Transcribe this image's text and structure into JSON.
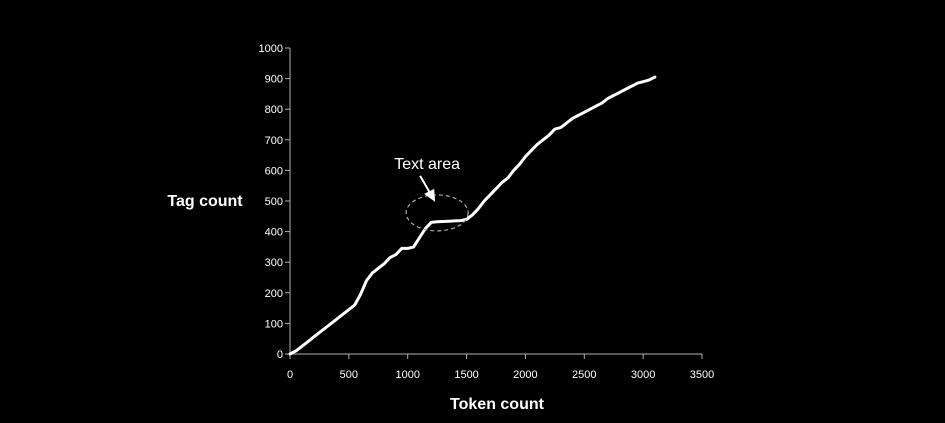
{
  "chart_data": {
    "type": "line",
    "title": "",
    "xlabel": "Token count",
    "ylabel": "Tag count",
    "xlim": [
      0,
      3500
    ],
    "ylim": [
      0,
      1000
    ],
    "x_ticks": [
      "0",
      "500",
      "1000",
      "1500",
      "2000",
      "2500",
      "3000",
      "3500"
    ],
    "y_ticks": [
      "0",
      "100",
      "200",
      "300",
      "400",
      "500",
      "600",
      "700",
      "800",
      "900",
      "1000"
    ],
    "grid": false,
    "legend": "none",
    "line_color": "#ffffff",
    "background_color": "#000000",
    "series": [
      {
        "x": [
          0,
          50,
          100,
          150,
          200,
          250,
          300,
          350,
          400,
          450,
          500,
          550,
          600,
          650,
          700,
          750,
          800,
          850,
          900,
          950,
          1000,
          1050,
          1100,
          1150,
          1200,
          1250,
          1300,
          1350,
          1400,
          1450,
          1500,
          1550,
          1600,
          1650,
          1700,
          1750,
          1800,
          1850,
          1900,
          1950,
          2000,
          2050,
          2100,
          2150,
          2200,
          2250,
          2300,
          2350,
          2400,
          2450,
          2500,
          2550,
          2600,
          2650,
          2700,
          2750,
          2800,
          2850,
          2900,
          2950,
          3000,
          3050,
          3100
        ],
        "y": [
          0,
          10,
          25,
          40,
          55,
          70,
          85,
          100,
          115,
          130,
          145,
          160,
          195,
          240,
          265,
          280,
          295,
          315,
          325,
          345,
          345,
          350,
          380,
          410,
          430,
          432,
          433,
          434,
          435,
          436,
          440,
          455,
          475,
          500,
          520,
          540,
          560,
          575,
          600,
          620,
          645,
          665,
          685,
          700,
          715,
          735,
          740,
          755,
          770,
          780,
          790,
          800,
          810,
          820,
          835,
          845,
          855,
          865,
          875,
          885,
          890,
          895,
          905
        ]
      }
    ],
    "annotations": [
      {
        "text": "Text area",
        "target_x": 1250,
        "target_y": 435
      }
    ]
  }
}
